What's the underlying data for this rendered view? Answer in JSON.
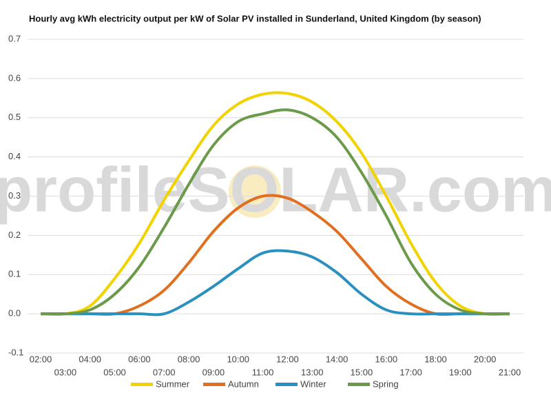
{
  "chart_data": {
    "type": "line",
    "title": "Hourly avg kWh electricity output per kW of Solar PV installed in Sunderland, United Kingdom (by season)",
    "watermark": "profileSOLAR.com",
    "categories": [
      "02:00",
      "03:00",
      "04:00",
      "05:00",
      "06:00",
      "07:00",
      "08:00",
      "09:00",
      "10:00",
      "11:00",
      "12:00",
      "13:00",
      "14:00",
      "15:00",
      "16:00",
      "17:00",
      "18:00",
      "19:00",
      "20:00",
      "21:00"
    ],
    "series": [
      {
        "name": "Summer",
        "color": "#f2d300",
        "values": [
          0,
          0,
          0.02,
          0.09,
          0.18,
          0.29,
          0.39,
          0.48,
          0.535,
          0.56,
          0.562,
          0.54,
          0.49,
          0.41,
          0.3,
          0.18,
          0.08,
          0.02,
          0,
          0
        ]
      },
      {
        "name": "Autumn",
        "color": "#e06f1f",
        "values": [
          0,
          0,
          0,
          0,
          0.02,
          0.06,
          0.13,
          0.21,
          0.27,
          0.3,
          0.295,
          0.26,
          0.21,
          0.14,
          0.07,
          0.025,
          0,
          0,
          0,
          0
        ]
      },
      {
        "name": "Winter",
        "color": "#2a90bf",
        "values": [
          0,
          0,
          0,
          0,
          0,
          0,
          0.03,
          0.07,
          0.115,
          0.155,
          0.16,
          0.145,
          0.105,
          0.05,
          0.01,
          0,
          0,
          0,
          0,
          0
        ]
      },
      {
        "name": "Spring",
        "color": "#6a9a4a",
        "values": [
          0,
          0,
          0.01,
          0.05,
          0.12,
          0.22,
          0.33,
          0.43,
          0.49,
          0.51,
          0.52,
          0.5,
          0.45,
          0.36,
          0.25,
          0.13,
          0.05,
          0.01,
          0,
          0
        ]
      }
    ],
    "ylim": [
      -0.1,
      0.7
    ],
    "yticks": [
      -0.1,
      {
        "value": 0,
        "label": "0.0"
      },
      0.1,
      0.2,
      0.3,
      0.4,
      0.5,
      0.6,
      0.7
    ],
    "grid": true
  }
}
